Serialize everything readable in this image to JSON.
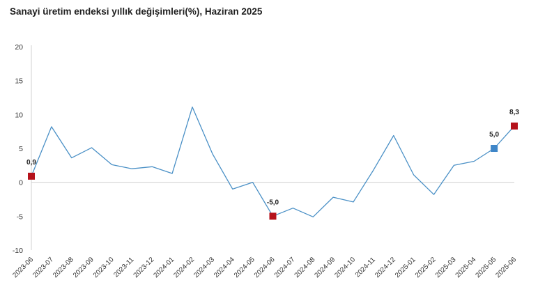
{
  "chart_data": {
    "type": "line",
    "title": "Sanayi üretim endeksi yıllık değişimleri(%), Haziran 2025",
    "xlabel": "",
    "ylabel": "",
    "ylim": [
      -10,
      20
    ],
    "yticks": [
      20,
      15,
      10,
      5,
      0,
      -5,
      -10
    ],
    "grid": false,
    "categories": [
      "2023-06",
      "2023-07",
      "2023-08",
      "2023-09",
      "2023-10",
      "2023-11",
      "2023-12",
      "2024-01",
      "2024-02",
      "2024-03",
      "2024-04",
      "2024-05",
      "2024-06",
      "2024-07",
      "2024-08",
      "2024-09",
      "2024-10",
      "2024-11",
      "2024-12",
      "2025-01",
      "2025-02",
      "2025-03",
      "2025-04",
      "2025-05",
      "2025-06"
    ],
    "series": [
      {
        "color": "#4a90c6",
        "values": [
          0.9,
          8.2,
          3.6,
          5.1,
          2.6,
          2.0,
          2.3,
          1.3,
          11.1,
          4.2,
          -1.0,
          0.0,
          -5.0,
          -3.8,
          -5.1,
          -2.2,
          -2.9,
          1.8,
          6.9,
          1.1,
          -1.8,
          2.5,
          3.1,
          5.0,
          8.3
        ]
      }
    ],
    "markers": [
      {
        "index": 0,
        "label": "0,9",
        "color": "#b5121b"
      },
      {
        "index": 12,
        "label": "-5,0",
        "color": "#b5121b"
      },
      {
        "index": 23,
        "label": "5,0",
        "color": "#3f86c8"
      },
      {
        "index": 24,
        "label": "8,3",
        "color": "#b5121b"
      }
    ],
    "axis_color": "#d0d0d0"
  }
}
